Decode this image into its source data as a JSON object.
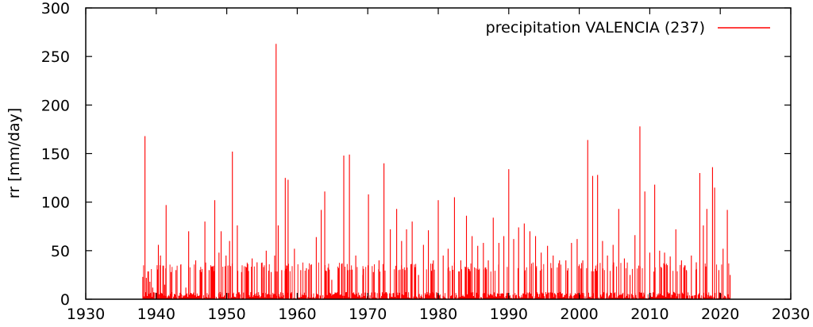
{
  "chart_data": {
    "type": "bar",
    "title": "",
    "xlabel": "",
    "ylabel": "rr [mm/day]",
    "xlim": [
      1930,
      2030
    ],
    "ylim": [
      0,
      300
    ],
    "xticks": [
      1930,
      1940,
      1950,
      1960,
      1970,
      1980,
      1990,
      2000,
      2010,
      2020,
      2030
    ],
    "yticks": [
      0,
      50,
      100,
      150,
      200,
      250,
      300
    ],
    "grid": false,
    "legend": {
      "position": "top-right"
    },
    "series": [
      {
        "name": "precipitation VALENCIA (237)",
        "color": "#ff0000",
        "x": [
          1938.1,
          1938.4,
          1938.6,
          1939.1,
          1939.5,
          1940.3,
          1940.6,
          1941.2,
          1941.4,
          1942.1,
          1942.8,
          1943.5,
          1944.2,
          1944.6,
          1945.6,
          1946.4,
          1946.9,
          1947.5,
          1948.3,
          1948.9,
          1949.2,
          1949.9,
          1950.4,
          1950.8,
          1951.5,
          1952.1,
          1952.7,
          1953.6,
          1954.3,
          1955.0,
          1955.6,
          1956.3,
          1956.8,
          1957.0,
          1957.3,
          1957.8,
          1958.3,
          1958.7,
          1959.6,
          1960.5,
          1961.3,
          1962.0,
          1962.7,
          1963.4,
          1963.9,
          1964.9,
          1965.8,
          1966.6,
          1967.4,
          1968.3,
          1969.3,
          1970.1,
          1970.8,
          1971.6,
          1972.3,
          1973.2,
          1974.1,
          1974.8,
          1975.5,
          1976.3,
          1977.2,
          1977.9,
          1978.6,
          1979.3,
          1980.0,
          1980.7,
          1981.4,
          1982.3,
          1983.2,
          1984.0,
          1984.8,
          1985.6,
          1986.4,
          1987.1,
          1987.8,
          1988.6,
          1989.3,
          1990.0,
          1990.7,
          1991.4,
          1992.2,
          1993.0,
          1993.8,
          1994.6,
          1995.5,
          1996.3,
          1997.2,
          1998.1,
          1998.9,
          1999.7,
          2000.5,
          2001.2,
          2001.9,
          2002.6,
          2003.3,
          2004.0,
          2004.8,
          2005.6,
          2006.4,
          2007.2,
          2007.9,
          2008.6,
          2009.3,
          2010.0,
          2010.7,
          2011.4,
          2012.1,
          2012.9,
          2013.7,
          2014.5,
          2015.2,
          2015.9,
          2016.6,
          2017.1,
          2017.6,
          2018.1,
          2018.9,
          2019.2,
          2019.8,
          2020.4,
          2021.0,
          2021.4
        ],
        "values": [
          23,
          168,
          22,
          18,
          12,
          56,
          45,
          15,
          97,
          28,
          30,
          36,
          12,
          70,
          40,
          28,
          80,
          30,
          102,
          48,
          70,
          45,
          60,
          152,
          76,
          28,
          32,
          42,
          38,
          22,
          50,
          28,
          45,
          263,
          76,
          30,
          125,
          123,
          52,
          30,
          32,
          36,
          64,
          92,
          111,
          20,
          25,
          148,
          149,
          45,
          25,
          108,
          28,
          40,
          140,
          72,
          93,
          60,
          72,
          80,
          25,
          56,
          71,
          40,
          102,
          45,
          52,
          105,
          40,
          86,
          65,
          55,
          58,
          40,
          84,
          58,
          65,
          134,
          62,
          74,
          78,
          70,
          65,
          48,
          55,
          45,
          40,
          40,
          58,
          62,
          40,
          164,
          127,
          128,
          60,
          45,
          56,
          93,
          42,
          25,
          66,
          178,
          111,
          48,
          118,
          50,
          48,
          44,
          72,
          40,
          30,
          45,
          38,
          130,
          76,
          93,
          136,
          115,
          30,
          52,
          92,
          25
        ]
      }
    ]
  }
}
